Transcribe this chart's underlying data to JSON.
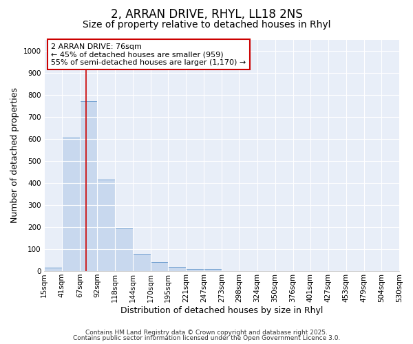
{
  "title1": "2, ARRAN DRIVE, RHYL, LL18 2NS",
  "title2": "Size of property relative to detached houses in Rhyl",
  "xlabel": "Distribution of detached houses by size in Rhyl",
  "ylabel": "Number of detached properties",
  "bin_edges": [
    15,
    41,
    67,
    92,
    118,
    144,
    170,
    195,
    221,
    247,
    273,
    298,
    324,
    350,
    376,
    401,
    427,
    453,
    479,
    504,
    530
  ],
  "bar_heights": [
    15,
    605,
    770,
    415,
    193,
    78,
    42,
    20,
    10,
    10,
    0,
    0,
    0,
    0,
    0,
    0,
    0,
    0,
    0,
    0
  ],
  "bar_color": "#c8d8ee",
  "bar_edgecolor": "#6699cc",
  "background_color": "#ffffff",
  "plot_bg_color": "#e8eef8",
  "grid_color": "#ffffff",
  "vline_x": 76,
  "vline_color": "#cc0000",
  "ylim": [
    0,
    1050
  ],
  "yticks": [
    0,
    100,
    200,
    300,
    400,
    500,
    600,
    700,
    800,
    900,
    1000
  ],
  "annotation_text": "2 ARRAN DRIVE: 76sqm\n← 45% of detached houses are smaller (959)\n55% of semi-detached houses are larger (1,170) →",
  "annotation_box_facecolor": "#ffffff",
  "annotation_box_edgecolor": "#cc0000",
  "footer1": "Contains HM Land Registry data © Crown copyright and database right 2025.",
  "footer2": "Contains public sector information licensed under the Open Government Licence 3.0.",
  "title1_fontsize": 12,
  "title2_fontsize": 10,
  "tick_fontsize": 7.5,
  "label_fontsize": 9,
  "annotation_fontsize": 8,
  "footer_fontsize": 6.5
}
